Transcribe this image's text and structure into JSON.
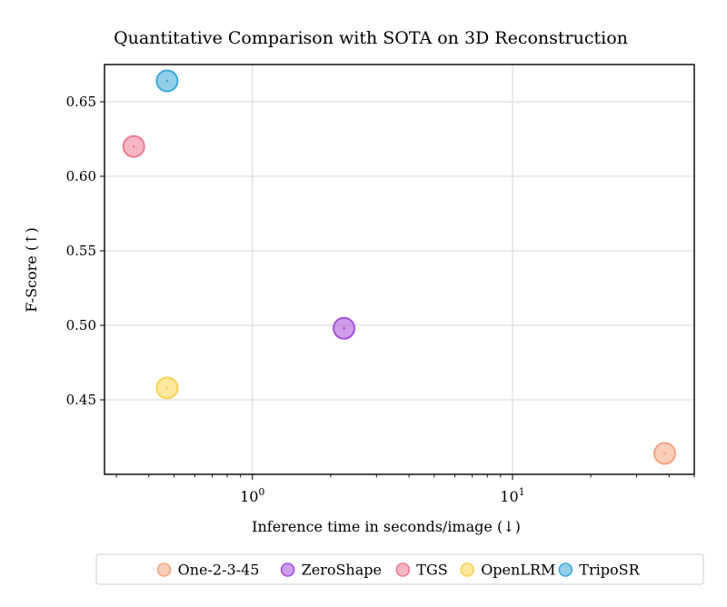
{
  "chart_data": {
    "type": "scatter",
    "title": "Quantitative Comparison with SOTA on 3D Reconstruction",
    "xlabel": "Inference time in seconds/image (↓)",
    "ylabel": "F-Score (↑)",
    "x_scale": "log",
    "xlim": [
      0.27,
      50
    ],
    "ylim": [
      0.4,
      0.675
    ],
    "x_ticks": [
      1,
      10
    ],
    "x_tick_labels": [
      "10^0",
      "10^1"
    ],
    "y_ticks": [
      0.45,
      0.5,
      0.55,
      0.6,
      0.65
    ],
    "y_tick_labels": [
      "0.45",
      "0.50",
      "0.55",
      "0.60",
      "0.65"
    ],
    "grid": true,
    "legend_position": "bottom",
    "series": [
      {
        "name": "One-2-3-45",
        "color": "#f4a582",
        "x": [
          38.5
        ],
        "y": [
          0.414
        ]
      },
      {
        "name": "ZeroShape",
        "color": "#a64ed8",
        "x": [
          2.25
        ],
        "y": [
          0.498
        ]
      },
      {
        "name": "TGS",
        "color": "#ec7a93",
        "x": [
          0.35
        ],
        "y": [
          0.62
        ]
      },
      {
        "name": "OpenLRM",
        "color": "#f8d34f",
        "x": [
          0.47
        ],
        "y": [
          0.458
        ]
      },
      {
        "name": "TripoSR",
        "color": "#3ca8d8",
        "x": [
          0.47
        ],
        "y": [
          0.664
        ]
      }
    ]
  }
}
